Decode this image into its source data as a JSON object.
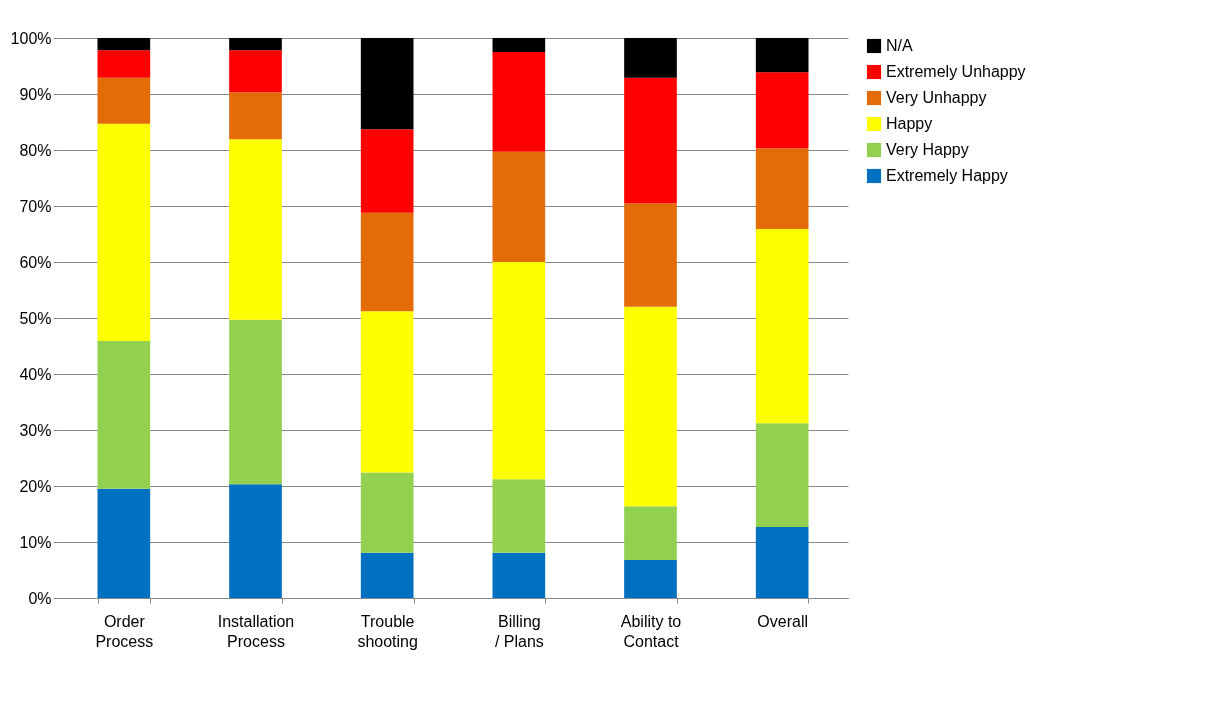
{
  "chart_data": {
    "type": "bar",
    "stacked": true,
    "categories": [
      "Order Process",
      "Installation Process",
      "Trouble shooting",
      "Billing / Plans",
      "Ability to Contact",
      "Overall"
    ],
    "series": [
      {
        "name": "Extremely Happy",
        "color": "#0070c0",
        "values": [
          19.5,
          20.3,
          8.1,
          8.1,
          6.8,
          12.7
        ]
      },
      {
        "name": "Very Happy",
        "color": "#92d050",
        "values": [
          26.4,
          29.4,
          14.3,
          13.1,
          9.6,
          18.5
        ]
      },
      {
        "name": "Happy",
        "color": "#ffff00",
        "values": [
          38.8,
          32.2,
          28.8,
          38.8,
          35.6,
          34.7
        ]
      },
      {
        "name": "Very Unhappy",
        "color": "#e36c09",
        "values": [
          8.2,
          8.4,
          17.6,
          19.7,
          18.5,
          14.4
        ]
      },
      {
        "name": "Extremely Unhappy",
        "color": "#ff0000",
        "values": [
          4.9,
          7.5,
          14.9,
          17.8,
          22.4,
          13.6
        ]
      },
      {
        "name": "N/A",
        "color": "#000000",
        "values": [
          2.2,
          2.2,
          16.3,
          2.5,
          7.1,
          6.1
        ]
      }
    ],
    "ylim": [
      0,
      100
    ],
    "yticks": [
      {
        "value": 0,
        "label": "0%"
      },
      {
        "value": 10,
        "label": "10%"
      },
      {
        "value": 20,
        "label": "20%"
      },
      {
        "value": 30,
        "label": "30%"
      },
      {
        "value": 40,
        "label": "40%"
      },
      {
        "value": 50,
        "label": "50%"
      },
      {
        "value": 60,
        "label": "60%"
      },
      {
        "value": 70,
        "label": "70%"
      },
      {
        "value": 80,
        "label": "80%"
      },
      {
        "value": 90,
        "label": "90%"
      },
      {
        "value": 100,
        "label": "100%"
      }
    ],
    "grid": "y",
    "legend": "right"
  }
}
